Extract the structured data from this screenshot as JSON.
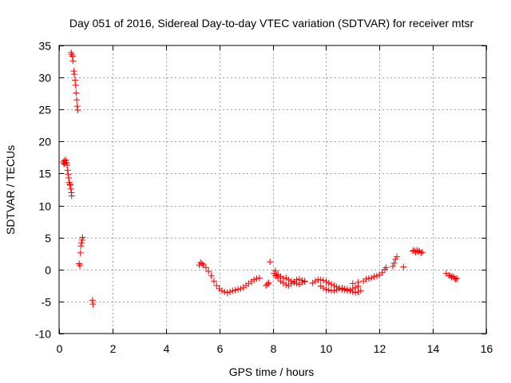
{
  "chart_data": {
    "type": "scatter",
    "title": "Day 051 of 2016, Sidereal Day-to-day VTEC variation (SDTVAR) for receiver mtsr",
    "xlabel": "GPS time / hours",
    "ylabel": "SDTVAR / TECUs",
    "xlim": [
      0,
      16
    ],
    "ylim": [
      -10,
      35
    ],
    "xticks": [
      0,
      2,
      4,
      6,
      8,
      10,
      12,
      14,
      16
    ],
    "yticks": [
      -10,
      -5,
      0,
      5,
      10,
      15,
      20,
      25,
      30,
      35
    ],
    "grid": true,
    "marker": "plus",
    "color": "#ff0000",
    "series": [
      {
        "name": "mtsr SDTVAR",
        "points": [
          [
            0.15,
            16.8
          ],
          [
            0.18,
            16.5
          ],
          [
            0.2,
            17.0
          ],
          [
            0.22,
            16.6
          ],
          [
            0.25,
            17.1
          ],
          [
            0.28,
            16.7
          ],
          [
            0.3,
            16.3
          ],
          [
            0.32,
            15.5
          ],
          [
            0.34,
            14.9
          ],
          [
            0.36,
            14.3
          ],
          [
            0.38,
            13.6
          ],
          [
            0.4,
            13.3
          ],
          [
            0.42,
            13.2
          ],
          [
            0.44,
            12.6
          ],
          [
            0.46,
            12.0
          ],
          [
            0.47,
            11.5
          ],
          [
            0.45,
            33.9
          ],
          [
            0.47,
            33.6
          ],
          [
            0.5,
            33.3
          ],
          [
            0.52,
            32.6
          ],
          [
            0.55,
            31.0
          ],
          [
            0.57,
            30.5
          ],
          [
            0.6,
            29.6
          ],
          [
            0.62,
            28.8
          ],
          [
            0.64,
            27.6
          ],
          [
            0.66,
            26.5
          ],
          [
            0.68,
            25.5
          ],
          [
            0.7,
            24.9
          ],
          [
            0.75,
            0.9
          ],
          [
            0.78,
            0.6
          ],
          [
            0.8,
            2.6
          ],
          [
            0.82,
            3.7
          ],
          [
            0.84,
            4.2
          ],
          [
            0.86,
            4.6
          ],
          [
            0.88,
            5.0
          ],
          [
            1.25,
            -4.8
          ],
          [
            1.27,
            -5.4
          ],
          [
            5.25,
            0.7
          ],
          [
            5.3,
            1.1
          ],
          [
            5.35,
            0.9
          ],
          [
            5.4,
            0.7
          ],
          [
            5.5,
            0.3
          ],
          [
            5.6,
            -0.3
          ],
          [
            5.7,
            -1.0
          ],
          [
            5.8,
            -1.8
          ],
          [
            5.9,
            -2.5
          ],
          [
            6.0,
            -3.0
          ],
          [
            6.1,
            -3.3
          ],
          [
            6.2,
            -3.5
          ],
          [
            6.3,
            -3.6
          ],
          [
            6.4,
            -3.5
          ],
          [
            6.5,
            -3.3
          ],
          [
            6.6,
            -3.2
          ],
          [
            6.7,
            -3.1
          ],
          [
            6.8,
            -3.0
          ],
          [
            6.9,
            -2.8
          ],
          [
            7.0,
            -2.5
          ],
          [
            7.1,
            -2.2
          ],
          [
            7.2,
            -1.9
          ],
          [
            7.3,
            -1.6
          ],
          [
            7.4,
            -1.4
          ],
          [
            7.5,
            -1.3
          ],
          [
            7.75,
            -2.5
          ],
          [
            7.8,
            -2.3
          ],
          [
            7.85,
            -2.1
          ],
          [
            7.9,
            1.2
          ],
          [
            8.05,
            -0.6
          ],
          [
            8.1,
            -0.2
          ],
          [
            8.15,
            -0.9
          ],
          [
            8.2,
            -1.3
          ],
          [
            8.3,
            -1.8
          ],
          [
            8.4,
            -2.1
          ],
          [
            8.5,
            -2.4
          ],
          [
            8.6,
            -2.5
          ],
          [
            8.7,
            -2.2
          ],
          [
            8.8,
            -1.9
          ],
          [
            8.9,
            -1.6
          ],
          [
            9.0,
            -1.5
          ],
          [
            9.1,
            -1.7
          ],
          [
            9.2,
            -1.9
          ],
          [
            8.1,
            -1.0
          ],
          [
            8.2,
            -0.8
          ],
          [
            8.3,
            -1.1
          ],
          [
            8.4,
            -1.4
          ],
          [
            8.5,
            -1.3
          ],
          [
            8.6,
            -1.6
          ],
          [
            8.7,
            -1.8
          ],
          [
            8.8,
            -2.0
          ],
          [
            8.9,
            -2.2
          ],
          [
            9.0,
            -2.3
          ],
          [
            9.1,
            -2.0
          ],
          [
            9.2,
            -1.8
          ],
          [
            9.5,
            -2.1
          ],
          [
            9.6,
            -1.8
          ],
          [
            9.7,
            -1.6
          ],
          [
            9.8,
            -1.6
          ],
          [
            9.9,
            -1.7
          ],
          [
            10.0,
            -1.9
          ],
          [
            10.1,
            -2.1
          ],
          [
            10.2,
            -2.3
          ],
          [
            10.3,
            -2.5
          ],
          [
            10.4,
            -2.7
          ],
          [
            10.5,
            -2.9
          ],
          [
            10.6,
            -3.1
          ],
          [
            10.7,
            -3.2
          ],
          [
            10.8,
            -3.3
          ],
          [
            10.9,
            -3.2
          ],
          [
            11.0,
            -3.0
          ],
          [
            11.1,
            -2.8
          ],
          [
            11.2,
            -2.6
          ],
          [
            9.8,
            -2.6
          ],
          [
            9.9,
            -2.9
          ],
          [
            10.0,
            -3.1
          ],
          [
            10.1,
            -3.2
          ],
          [
            10.2,
            -3.3
          ],
          [
            10.3,
            -3.3
          ],
          [
            10.4,
            -3.2
          ],
          [
            10.5,
            -3.0
          ],
          [
            10.6,
            -2.9
          ],
          [
            10.7,
            -3.0
          ],
          [
            10.8,
            -3.1
          ],
          [
            10.9,
            -3.3
          ],
          [
            11.0,
            -3.5
          ],
          [
            11.1,
            -3.6
          ],
          [
            11.2,
            -3.5
          ],
          [
            11.3,
            -3.3
          ],
          [
            11.0,
            -2.2
          ],
          [
            11.2,
            -2.0
          ],
          [
            11.4,
            -1.8
          ],
          [
            11.5,
            -1.5
          ],
          [
            11.6,
            -1.4
          ],
          [
            11.7,
            -1.3
          ],
          [
            11.8,
            -1.1
          ],
          [
            11.9,
            -1.0
          ],
          [
            12.0,
            -0.8
          ],
          [
            12.1,
            -0.5
          ],
          [
            12.2,
            0.0
          ],
          [
            12.25,
            0.3
          ],
          [
            12.5,
            0.5
          ],
          [
            12.55,
            1.0
          ],
          [
            12.6,
            1.6
          ],
          [
            12.65,
            2.0
          ],
          [
            12.9,
            0.4
          ],
          [
            13.25,
            2.9
          ],
          [
            13.3,
            3.0
          ],
          [
            13.35,
            2.7
          ],
          [
            13.4,
            3.0
          ],
          [
            13.45,
            2.8
          ],
          [
            13.5,
            2.9
          ],
          [
            13.55,
            2.6
          ],
          [
            13.6,
            2.7
          ],
          [
            14.5,
            -0.6
          ],
          [
            14.6,
            -0.9
          ],
          [
            14.65,
            -1.0
          ],
          [
            14.7,
            -1.2
          ],
          [
            14.75,
            -1.1
          ],
          [
            14.8,
            -1.3
          ],
          [
            14.85,
            -1.5
          ],
          [
            14.9,
            -1.4
          ]
        ]
      }
    ]
  }
}
